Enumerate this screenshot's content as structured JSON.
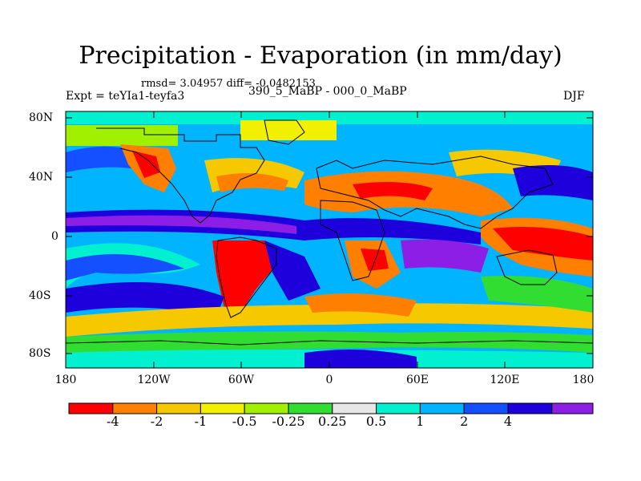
{
  "title": "Precipitation - Evaporation (in mm/day)",
  "stats": "rmsd= 3.04957 diff= -0.0482153",
  "experiment": "Expt = teYIa1-teyfa3",
  "period": "390_5_MaBP - 000_0_MaBP",
  "season": "DJF",
  "map": {
    "lat_ticks": [
      "80N",
      "40N",
      "0",
      "40S",
      "80S"
    ],
    "lon_ticks": [
      "180",
      "120W",
      "60W",
      "0",
      "60E",
      "120E",
      "180"
    ]
  },
  "colorbar": {
    "labels": [
      "-4",
      "-2",
      "-1",
      "-0.5",
      "-0.25",
      "0.25",
      "0.5",
      "1",
      "2",
      "4"
    ],
    "colors": [
      "#ff0000",
      "#ff7f00",
      "#f5c800",
      "#f0f000",
      "#a0f000",
      "#32dd32",
      "#e6e6e6",
      "#00f0d0",
      "#00b4ff",
      "#1450ff",
      "#1e00dc",
      "#8c1ee6"
    ]
  }
}
